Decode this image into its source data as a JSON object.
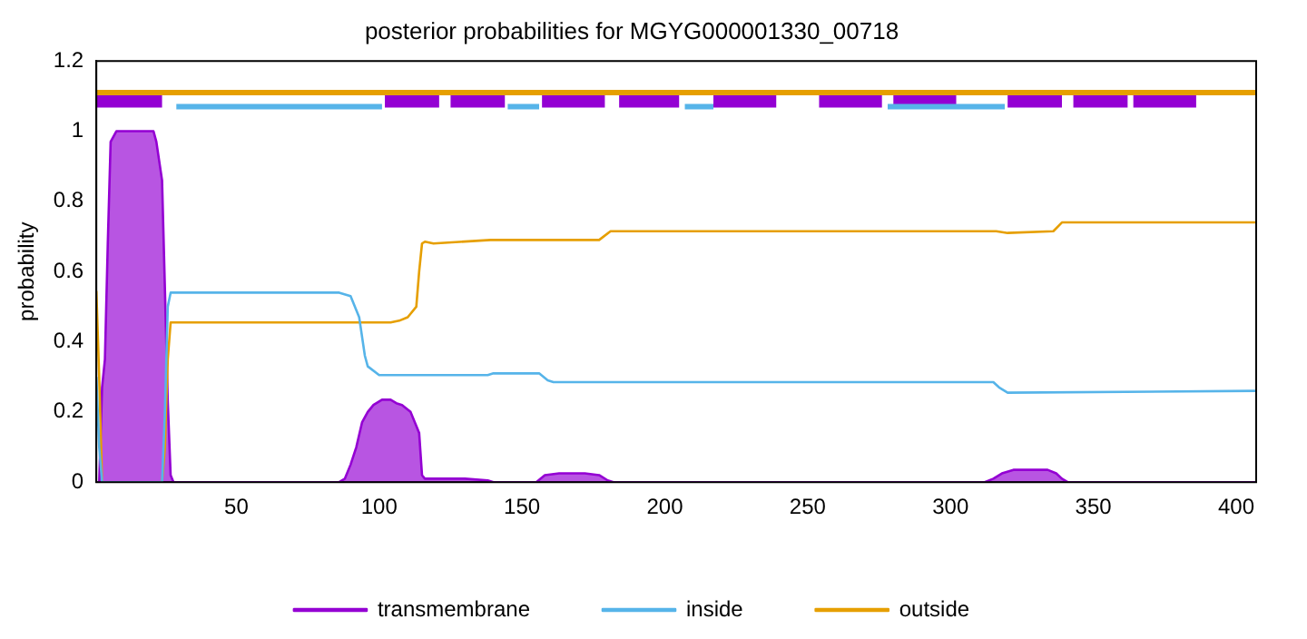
{
  "chart_data": {
    "type": "line",
    "title": "posterior probabilities for MGYG000001330_00718",
    "ylabel": "probability",
    "xlim": [
      1,
      407
    ],
    "xticks": [
      50,
      100,
      150,
      200,
      250,
      300,
      350,
      400
    ],
    "ylim": [
      0,
      1.2
    ],
    "yticks": [
      0,
      0.2,
      0.4,
      0.6,
      0.8,
      1,
      1.2
    ],
    "grid": false,
    "legend": "bottom",
    "marker": "none",
    "line_style": "solid",
    "series": [
      {
        "name": "transmembrane",
        "type": "area",
        "color": "#9400d3",
        "x": [
          1,
          2,
          3,
          4,
          5,
          6,
          8,
          21,
          22,
          24,
          25,
          26,
          27,
          28,
          86,
          88,
          90,
          92,
          94,
          96,
          98,
          101,
          104,
          106,
          108,
          111,
          113,
          114,
          115,
          116,
          130,
          138,
          140,
          155,
          158,
          163,
          172,
          177,
          180,
          182,
          312,
          315,
          318,
          322,
          334,
          337,
          339,
          341,
          407
        ],
        "values": [
          0,
          0,
          0.27,
          0.35,
          0.68,
          0.97,
          1,
          1,
          0.97,
          0.86,
          0.55,
          0.23,
          0.02,
          0,
          0,
          0.01,
          0.05,
          0.1,
          0.17,
          0.2,
          0.22,
          0.235,
          0.235,
          0.225,
          0.22,
          0.2,
          0.16,
          0.14,
          0.02,
          0.01,
          0.01,
          0.005,
          0,
          0,
          0.02,
          0.025,
          0.025,
          0.02,
          0.005,
          0,
          0,
          0.01,
          0.025,
          0.035,
          0.035,
          0.025,
          0.01,
          0,
          0
        ]
      },
      {
        "name": "inside",
        "color": "#56b4e9",
        "x": [
          1,
          2,
          3,
          24,
          25,
          26,
          27,
          86,
          90,
          93,
          95,
          96,
          100,
          138,
          140,
          156,
          159,
          161,
          315,
          317,
          320,
          407
        ],
        "values": [
          0.3,
          0.1,
          0,
          0,
          0.2,
          0.5,
          0.54,
          0.54,
          0.53,
          0.47,
          0.36,
          0.33,
          0.305,
          0.305,
          0.31,
          0.31,
          0.29,
          0.285,
          0.285,
          0.27,
          0.255,
          0.26
        ]
      },
      {
        "name": "outside",
        "color": "#e69f00",
        "x": [
          1,
          2,
          3,
          24,
          25,
          26,
          27,
          104,
          107,
          110,
          113,
          114,
          115,
          116,
          119,
          139,
          177,
          181,
          316,
          320,
          336,
          339,
          407
        ],
        "values": [
          0.545,
          0.3,
          0,
          0,
          0.1,
          0.35,
          0.455,
          0.455,
          0.46,
          0.47,
          0.5,
          0.6,
          0.68,
          0.685,
          0.68,
          0.69,
          0.69,
          0.715,
          0.715,
          0.71,
          0.715,
          0.74,
          0.74
        ]
      },
      {
        "color": "#e69f00",
        "x": [
          1,
          407
        ],
        "values": [
          1.11,
          1.11
        ]
      },
      {
        "color": "#56b4e9",
        "x": [
          29,
          101,
          102,
          145,
          156,
          157,
          207,
          217,
          218,
          278,
          319
        ],
        "values": [
          1.07,
          1.07,
          null,
          1.07,
          1.07,
          null,
          1.07,
          1.07,
          null,
          1.07,
          1.07
        ]
      },
      {
        "color": "#9400d3",
        "x": [
          1,
          24,
          25,
          102,
          121,
          122,
          125,
          144,
          145,
          157,
          179,
          180,
          184,
          205,
          206,
          217,
          239,
          240,
          254,
          276,
          277,
          280,
          302,
          303,
          320,
          339,
          340,
          343,
          362,
          363,
          364,
          386
        ],
        "values": [
          1.088,
          1.088,
          null,
          1.088,
          1.088,
          null,
          1.088,
          1.088,
          null,
          1.088,
          1.088,
          null,
          1.088,
          1.088,
          null,
          1.088,
          1.088,
          null,
          1.088,
          1.088,
          null,
          1.088,
          1.088,
          null,
          1.088,
          1.088,
          null,
          1.088,
          1.088,
          null,
          1.088,
          1.088
        ]
      }
    ]
  }
}
